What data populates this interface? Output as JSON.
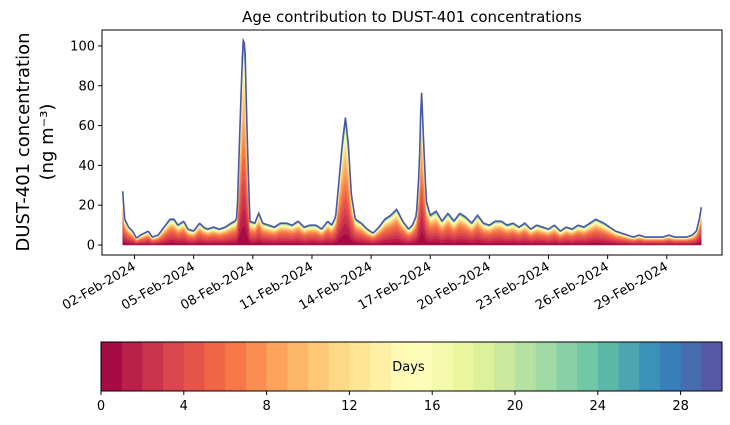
{
  "chart_data": {
    "type": "area",
    "title": "Age contribution to DUST-401 concentrations",
    "ylabel_line1": "DUST-401 concentration",
    "ylabel_line2": "(ng m⁻³)",
    "xlabel": "",
    "ylim": [
      -5,
      108
    ],
    "y_ticks": [
      0,
      20,
      40,
      60,
      80,
      100
    ],
    "x_tick_labels": [
      "02-Feb-2024",
      "05-Feb-2024",
      "08-Feb-2024",
      "11-Feb-2024",
      "14-Feb-2024",
      "17-Feb-2024",
      "20-Feb-2024",
      "23-Feb-2024",
      "26-Feb-2024",
      "29-Feb-2024"
    ],
    "x_tick_days": [
      2,
      5,
      8,
      11,
      14,
      17,
      20,
      23,
      26,
      29
    ],
    "x_range_days": [
      0.35,
      31.8
    ],
    "series_start_day": 1.4,
    "series_end_day": 30.75,
    "total_concentration_profile": [
      [
        1.4,
        27
      ],
      [
        1.5,
        13
      ],
      [
        1.7,
        9
      ],
      [
        1.9,
        7
      ],
      [
        2.1,
        3.5
      ],
      [
        2.3,
        5
      ],
      [
        2.5,
        6
      ],
      [
        2.7,
        7
      ],
      [
        2.9,
        4
      ],
      [
        3.2,
        5
      ],
      [
        3.5,
        9
      ],
      [
        3.8,
        13
      ],
      [
        4.0,
        13
      ],
      [
        4.2,
        10
      ],
      [
        4.5,
        12
      ],
      [
        4.7,
        8
      ],
      [
        5.0,
        7
      ],
      [
        5.3,
        11
      ],
      [
        5.5,
        9
      ],
      [
        5.7,
        8
      ],
      [
        6.0,
        9
      ],
      [
        6.3,
        8
      ],
      [
        6.6,
        9
      ],
      [
        6.9,
        11
      ],
      [
        7.1,
        12
      ],
      [
        7.2,
        14
      ],
      [
        7.35,
        60
      ],
      [
        7.5,
        103
      ],
      [
        7.6,
        101
      ],
      [
        7.7,
        60
      ],
      [
        7.85,
        12
      ],
      [
        8.1,
        11
      ],
      [
        8.3,
        16
      ],
      [
        8.5,
        11
      ],
      [
        8.8,
        10
      ],
      [
        9.1,
        9
      ],
      [
        9.4,
        11
      ],
      [
        9.7,
        11
      ],
      [
        10.0,
        10
      ],
      [
        10.3,
        12
      ],
      [
        10.6,
        9
      ],
      [
        10.9,
        10
      ],
      [
        11.2,
        10
      ],
      [
        11.5,
        8
      ],
      [
        11.8,
        12
      ],
      [
        12.0,
        10
      ],
      [
        12.2,
        14
      ],
      [
        12.35,
        30
      ],
      [
        12.55,
        52
      ],
      [
        12.7,
        64
      ],
      [
        12.85,
        50
      ],
      [
        13.0,
        25
      ],
      [
        13.2,
        13
      ],
      [
        13.5,
        11
      ],
      [
        13.8,
        8
      ],
      [
        14.1,
        6
      ],
      [
        14.4,
        9
      ],
      [
        14.7,
        13
      ],
      [
        15.0,
        15
      ],
      [
        15.3,
        18
      ],
      [
        15.6,
        12
      ],
      [
        15.9,
        8
      ],
      [
        16.1,
        10
      ],
      [
        16.3,
        15
      ],
      [
        16.45,
        40
      ],
      [
        16.55,
        80
      ],
      [
        16.65,
        55
      ],
      [
        16.8,
        22
      ],
      [
        17.0,
        15
      ],
      [
        17.3,
        17
      ],
      [
        17.6,
        12
      ],
      [
        17.9,
        16
      ],
      [
        18.2,
        12
      ],
      [
        18.5,
        16
      ],
      [
        18.8,
        14
      ],
      [
        19.1,
        11
      ],
      [
        19.4,
        15
      ],
      [
        19.7,
        11
      ],
      [
        20.0,
        10
      ],
      [
        20.3,
        12
      ],
      [
        20.6,
        12
      ],
      [
        20.9,
        10
      ],
      [
        21.2,
        11
      ],
      [
        21.5,
        9
      ],
      [
        21.8,
        11
      ],
      [
        22.1,
        8
      ],
      [
        22.4,
        10
      ],
      [
        22.7,
        9
      ],
      [
        23.0,
        8
      ],
      [
        23.3,
        10
      ],
      [
        23.6,
        7
      ],
      [
        23.9,
        9
      ],
      [
        24.2,
        8
      ],
      [
        24.5,
        10
      ],
      [
        24.8,
        9
      ],
      [
        25.1,
        11
      ],
      [
        25.4,
        13
      ],
      [
        25.6,
        12
      ],
      [
        25.8,
        11
      ],
      [
        26.1,
        9
      ],
      [
        26.4,
        7
      ],
      [
        26.7,
        6
      ],
      [
        27.0,
        5
      ],
      [
        27.3,
        4
      ],
      [
        27.6,
        5
      ],
      [
        27.9,
        4
      ],
      [
        28.2,
        4
      ],
      [
        28.5,
        4
      ],
      [
        28.8,
        4
      ],
      [
        29.1,
        5
      ],
      [
        29.4,
        4
      ],
      [
        29.7,
        4
      ],
      [
        30.0,
        4
      ],
      [
        30.3,
        5
      ],
      [
        30.5,
        7
      ],
      [
        30.65,
        13
      ],
      [
        30.75,
        19
      ]
    ],
    "colorbar": {
      "label": "Days",
      "min": 0,
      "max": 30,
      "ticks": [
        0,
        4,
        8,
        12,
        16,
        20,
        24,
        28
      ],
      "n_bins": 30,
      "colormap": "Spectral",
      "colors": [
        "#9e0142",
        "#d53e4f",
        "#f46d43",
        "#fdae61",
        "#fee08b",
        "#ffffbf",
        "#e6f598",
        "#abdda4",
        "#66c2a5",
        "#3288bd",
        "#5e4fa2"
      ]
    }
  }
}
